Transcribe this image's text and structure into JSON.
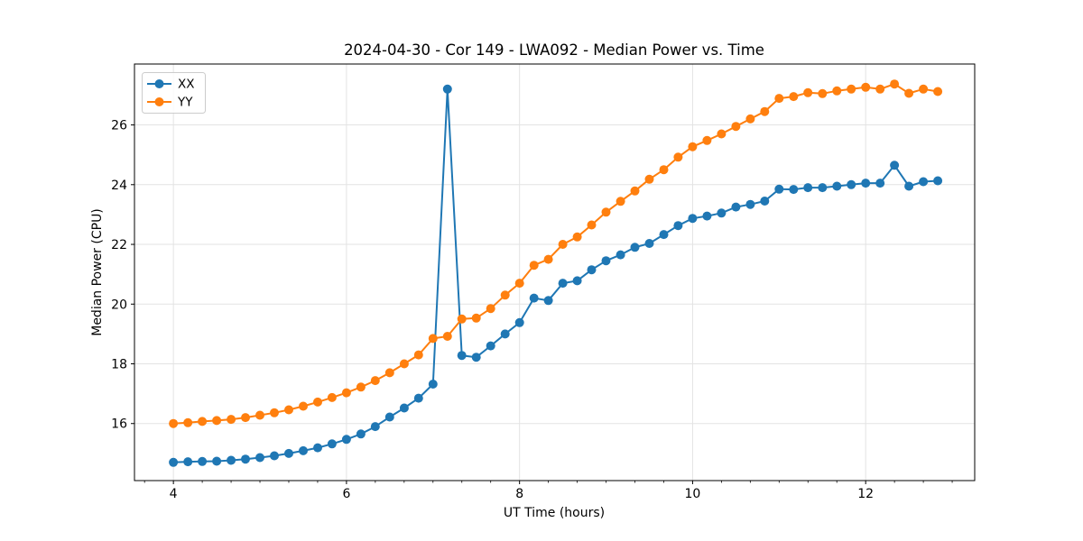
{
  "figure": {
    "title": "2024-04-30 - Cor 149 - LWA092 - Median Power vs. Time",
    "xlabel": "UT Time (hours)",
    "ylabel": "Median Power (CPU)"
  },
  "legend": {
    "position": "upper left",
    "items": [
      {
        "label": "XX",
        "color": "#1f77b4"
      },
      {
        "label": "YY",
        "color": "#ff7f0e"
      }
    ]
  },
  "colors": {
    "series_xx": "#1f77b4",
    "series_yy": "#ff7f0e",
    "grid": "#e3e3e3",
    "spine": "#000000",
    "background": "#ffffff",
    "legend_border": "#cccccc"
  },
  "chart_data": {
    "type": "line",
    "title": "2024-04-30 - Cor 149 - LWA092 - Median Power vs. Time",
    "xlabel": "UT Time (hours)",
    "ylabel": "Median Power (CPU)",
    "xlim": [
      3.55,
      13.26
    ],
    "ylim": [
      14.09,
      28.04
    ],
    "x_major_ticks": [
      4,
      6,
      8,
      10,
      12
    ],
    "x_minor_tick_step": 0.33333,
    "y_major_ticks": [
      16,
      18,
      20,
      22,
      24,
      26
    ],
    "grid": true,
    "legend_position": "upper left",
    "marker": "circle",
    "x": [
      4.0,
      4.167,
      4.333,
      4.5,
      4.667,
      4.833,
      5.0,
      5.167,
      5.333,
      5.5,
      5.667,
      5.833,
      6.0,
      6.167,
      6.333,
      6.5,
      6.667,
      6.833,
      7.0,
      7.167,
      7.333,
      7.5,
      7.667,
      7.833,
      8.0,
      8.167,
      8.333,
      8.5,
      8.667,
      8.833,
      9.0,
      9.167,
      9.333,
      9.5,
      9.667,
      9.833,
      10.0,
      10.167,
      10.333,
      10.5,
      10.667,
      10.833,
      11.0,
      11.167,
      11.333,
      11.5,
      11.667,
      11.833,
      12.0,
      12.167,
      12.333,
      12.5,
      12.667,
      12.833
    ],
    "series": [
      {
        "name": "XX",
        "color": "#1f77b4",
        "values": [
          14.7,
          14.72,
          14.73,
          14.74,
          14.77,
          14.81,
          14.86,
          14.92,
          15.0,
          15.09,
          15.19,
          15.32,
          15.47,
          15.65,
          15.9,
          16.22,
          16.52,
          16.85,
          17.32,
          27.2,
          18.28,
          18.22,
          18.6,
          19.0,
          19.38,
          20.2,
          20.12,
          20.7,
          20.78,
          21.15,
          21.45,
          21.65,
          21.9,
          22.03,
          22.33,
          22.63,
          22.87,
          22.95,
          23.05,
          23.25,
          23.34,
          23.45,
          23.85,
          23.84,
          23.9,
          23.9,
          23.95,
          24.0,
          24.05,
          24.05,
          24.65,
          23.95,
          24.1,
          24.13
        ]
      },
      {
        "name": "YY",
        "color": "#ff7f0e",
        "values": [
          16.0,
          16.03,
          16.07,
          16.1,
          16.14,
          16.2,
          16.28,
          16.36,
          16.46,
          16.58,
          16.72,
          16.87,
          17.03,
          17.22,
          17.44,
          17.7,
          18.0,
          18.3,
          18.85,
          18.92,
          19.5,
          19.53,
          19.85,
          20.3,
          20.7,
          21.3,
          21.5,
          22.0,
          22.25,
          22.65,
          23.08,
          23.44,
          23.79,
          24.18,
          24.5,
          24.92,
          25.27,
          25.48,
          25.7,
          25.95,
          26.2,
          26.45,
          26.89,
          26.95,
          27.08,
          27.05,
          27.14,
          27.2,
          27.26,
          27.2,
          27.37,
          27.06,
          27.2,
          27.12
        ]
      }
    ]
  }
}
